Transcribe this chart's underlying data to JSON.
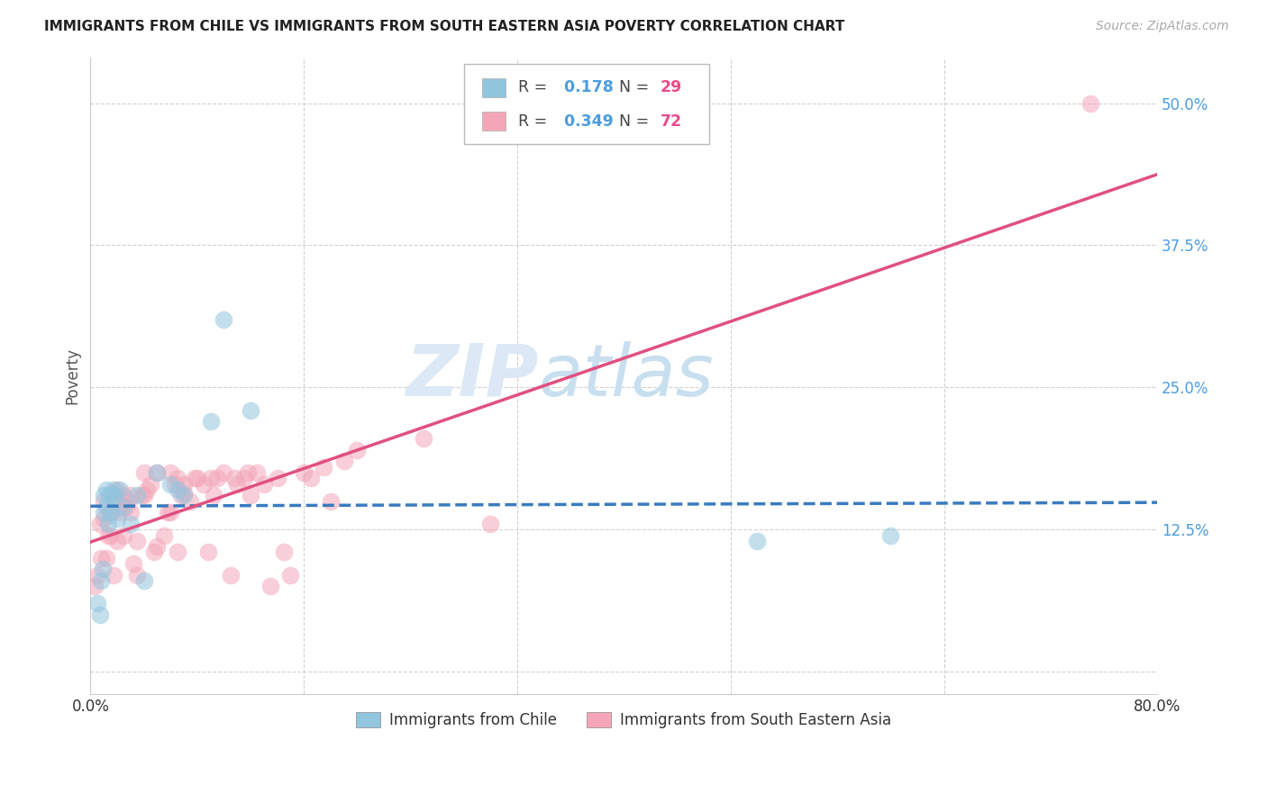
{
  "title": "IMMIGRANTS FROM CHILE VS IMMIGRANTS FROM SOUTH EASTERN ASIA POVERTY CORRELATION CHART",
  "source": "Source: ZipAtlas.com",
  "ylabel": "Poverty",
  "yticks": [
    0.0,
    0.125,
    0.25,
    0.375,
    0.5
  ],
  "ytick_labels": [
    "",
    "12.5%",
    "25.0%",
    "37.5%",
    "50.0%"
  ],
  "xticks": [
    0.0,
    0.16,
    0.32,
    0.48,
    0.64,
    0.8
  ],
  "xtick_labels": [
    "0.0%",
    "",
    "",
    "",
    "",
    "80.0%"
  ],
  "xlim": [
    0.0,
    0.8
  ],
  "ylim": [
    -0.02,
    0.54
  ],
  "series1_label": "Immigrants from Chile",
  "series2_label": "Immigrants from South Eastern Asia",
  "R1": 0.178,
  "N1": 29,
  "R2": 0.349,
  "N2": 72,
  "color1": "#92c5de",
  "color2": "#f4a6b8",
  "line_color1": "#3a7bbf",
  "line_color2": "#e05080",
  "watermark_zip": "ZIP",
  "watermark_atlas": "atlas",
  "chile_x": [
    0.005,
    0.007,
    0.008,
    0.009,
    0.01,
    0.01,
    0.012,
    0.012,
    0.013,
    0.014,
    0.015,
    0.016,
    0.017,
    0.018,
    0.02,
    0.022,
    0.025,
    0.03,
    0.035,
    0.04,
    0.05,
    0.06,
    0.065,
    0.07,
    0.09,
    0.1,
    0.12,
    0.5,
    0.6
  ],
  "chile_y": [
    0.06,
    0.05,
    0.08,
    0.09,
    0.14,
    0.155,
    0.145,
    0.16,
    0.13,
    0.155,
    0.14,
    0.155,
    0.16,
    0.155,
    0.135,
    0.16,
    0.145,
    0.13,
    0.155,
    0.08,
    0.175,
    0.165,
    0.16,
    0.155,
    0.22,
    0.31,
    0.23,
    0.115,
    0.12
  ],
  "sea_x": [
    0.003,
    0.005,
    0.007,
    0.008,
    0.01,
    0.01,
    0.012,
    0.013,
    0.015,
    0.015,
    0.017,
    0.018,
    0.02,
    0.02,
    0.022,
    0.025,
    0.025,
    0.027,
    0.028,
    0.03,
    0.03,
    0.032,
    0.035,
    0.035,
    0.038,
    0.04,
    0.04,
    0.042,
    0.045,
    0.048,
    0.05,
    0.05,
    0.055,
    0.058,
    0.06,
    0.06,
    0.063,
    0.065,
    0.065,
    0.068,
    0.07,
    0.07,
    0.075,
    0.078,
    0.08,
    0.085,
    0.088,
    0.09,
    0.092,
    0.095,
    0.1,
    0.105,
    0.108,
    0.11,
    0.115,
    0.118,
    0.12,
    0.125,
    0.13,
    0.135,
    0.14,
    0.145,
    0.15,
    0.16,
    0.165,
    0.175,
    0.18,
    0.19,
    0.2,
    0.25,
    0.3,
    0.75
  ],
  "sea_y": [
    0.075,
    0.085,
    0.13,
    0.1,
    0.135,
    0.15,
    0.1,
    0.12,
    0.12,
    0.14,
    0.085,
    0.15,
    0.115,
    0.16,
    0.14,
    0.12,
    0.155,
    0.145,
    0.15,
    0.14,
    0.155,
    0.095,
    0.115,
    0.085,
    0.155,
    0.155,
    0.175,
    0.16,
    0.165,
    0.105,
    0.11,
    0.175,
    0.12,
    0.14,
    0.14,
    0.175,
    0.165,
    0.105,
    0.17,
    0.155,
    0.158,
    0.165,
    0.15,
    0.17,
    0.17,
    0.165,
    0.105,
    0.17,
    0.155,
    0.17,
    0.175,
    0.085,
    0.17,
    0.165,
    0.17,
    0.175,
    0.155,
    0.175,
    0.165,
    0.075,
    0.17,
    0.105,
    0.085,
    0.175,
    0.17,
    0.18,
    0.15,
    0.185,
    0.195,
    0.205,
    0.13,
    0.5
  ],
  "legend_R_color": "#4d9de0",
  "legend_N_color": "#e84c8b",
  "legend_text_color": "#444444"
}
